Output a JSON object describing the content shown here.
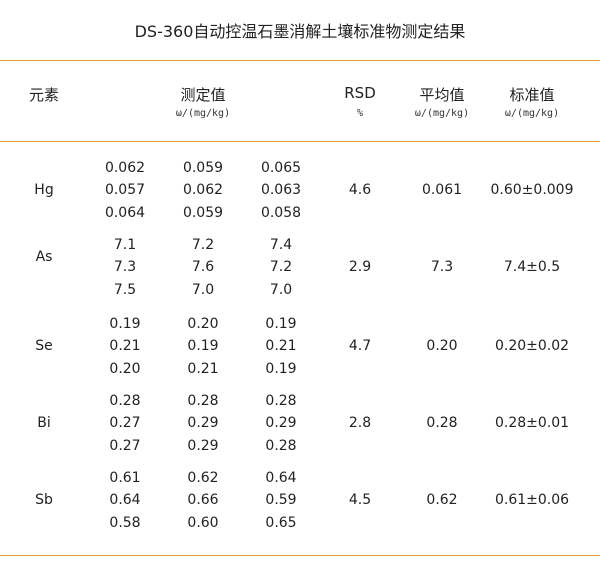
{
  "title": "DS-360自动控温石墨消解土壤标准物测定结果",
  "headers": {
    "element": "元素",
    "measured": "测定值",
    "measured_unit": "ω/(mg/kg)",
    "rsd": "RSD",
    "rsd_unit": "%",
    "mean": "平均值",
    "mean_unit": "ω/(mg/kg)",
    "standard": "标准值",
    "standard_unit": "ω/(mg/kg)"
  },
  "rows": [
    {
      "element": "Hg",
      "values": [
        [
          "0.062",
          "0.059",
          "0.065"
        ],
        [
          "0.057",
          "0.062",
          "0.063"
        ],
        [
          "0.064",
          "0.059",
          "0.058"
        ]
      ],
      "rsd": "4.6",
      "mean": "0.061",
      "standard": "0.60±0.009"
    },
    {
      "element": "As",
      "values": [
        [
          "7.1",
          "7.2",
          "7.4"
        ],
        [
          "7.3",
          "7.6",
          "7.2"
        ],
        [
          "7.5",
          "7.0",
          "7.0"
        ]
      ],
      "rsd": "2.9",
      "mean": "7.3",
      "standard": "7.4±0.5"
    },
    {
      "element": "Se",
      "values": [
        [
          "0.19",
          "0.20",
          "0.19"
        ],
        [
          "0.21",
          "0.19",
          "0.21"
        ],
        [
          "0.20",
          "0.21",
          "0.19"
        ]
      ],
      "rsd": "4.7",
      "mean": "0.20",
      "standard": "0.20±0.02"
    },
    {
      "element": "Bi",
      "values": [
        [
          "0.28",
          "0.28",
          "0.28"
        ],
        [
          "0.27",
          "0.29",
          "0.29"
        ],
        [
          "0.27",
          "0.29",
          "0.28"
        ]
      ],
      "rsd": "2.8",
      "mean": "0.28",
      "standard": "0.28±0.01"
    },
    {
      "element": "Sb",
      "values": [
        [
          "0.61",
          "0.62",
          "0.64"
        ],
        [
          "0.64",
          "0.66",
          "0.59"
        ],
        [
          "0.58",
          "0.60",
          "0.65"
        ]
      ],
      "rsd": "4.5",
      "mean": "0.62",
      "standard": "0.61±0.06"
    }
  ],
  "colors": {
    "rule": "#e0a030"
  }
}
